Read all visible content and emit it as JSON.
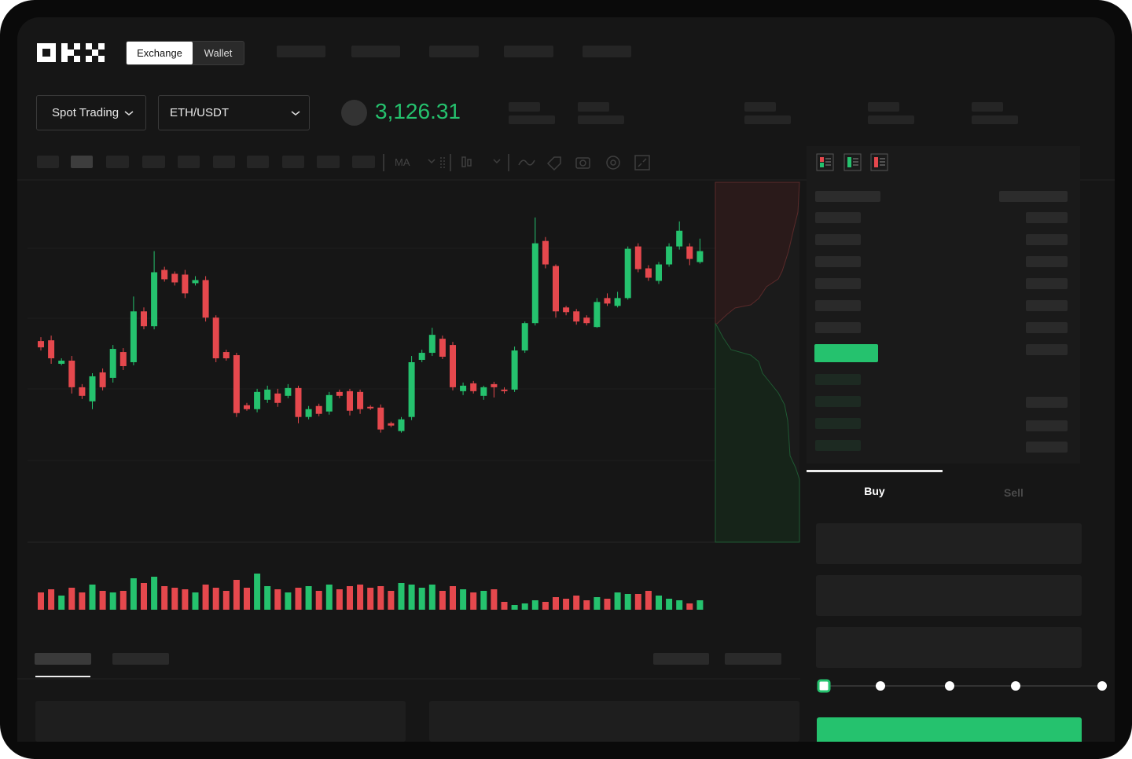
{
  "header": {
    "tabs": [
      "Exchange",
      "Wallet"
    ]
  },
  "toolbar": {
    "mode": "Spot Trading",
    "pair": "ETH/USDT",
    "price": "3,126.31",
    "indicator": "MA"
  },
  "chart": {
    "ylim": [
      10,
      470
    ],
    "candles": [
      [
        267,
        272,
        255,
        259
      ],
      [
        268,
        274,
        238,
        245
      ],
      [
        238,
        245,
        236,
        242
      ],
      [
        242,
        248,
        200,
        208
      ],
      [
        208,
        212,
        193,
        197
      ],
      [
        190,
        226,
        180,
        222
      ],
      [
        227,
        232,
        204,
        208
      ],
      [
        220,
        262,
        214,
        257
      ],
      [
        253,
        258,
        230,
        235
      ],
      [
        240,
        324,
        236,
        305
      ],
      [
        305,
        310,
        282,
        286
      ],
      [
        286,
        382,
        282,
        355
      ],
      [
        358,
        362,
        343,
        346
      ],
      [
        353,
        356,
        338,
        342
      ],
      [
        352,
        358,
        322,
        328
      ],
      [
        341,
        350,
        338,
        345
      ],
      [
        345,
        350,
        292,
        297
      ],
      [
        297,
        300,
        240,
        245
      ],
      [
        253,
        256,
        242,
        245
      ],
      [
        249,
        252,
        170,
        175
      ],
      [
        185,
        188,
        178,
        180
      ],
      [
        180,
        206,
        176,
        202
      ],
      [
        192,
        210,
        188,
        205
      ],
      [
        200,
        206,
        183,
        188
      ],
      [
        197,
        212,
        194,
        207
      ],
      [
        207,
        210,
        162,
        170
      ],
      [
        170,
        184,
        167,
        180
      ],
      [
        184,
        187,
        171,
        174
      ],
      [
        177,
        202,
        173,
        198
      ],
      [
        202,
        205,
        194,
        197
      ],
      [
        203,
        206,
        172,
        178
      ],
      [
        202,
        205,
        174,
        180
      ],
      [
        183,
        185,
        179,
        181
      ],
      [
        182,
        186,
        150,
        154
      ],
      [
        162,
        164,
        157,
        159
      ],
      [
        152,
        170,
        150,
        167
      ],
      [
        170,
        248,
        166,
        240
      ],
      [
        243,
        256,
        240,
        252
      ],
      [
        252,
        284,
        248,
        275
      ],
      [
        270,
        274,
        244,
        247
      ],
      [
        262,
        266,
        204,
        208
      ],
      [
        203,
        214,
        198,
        210
      ],
      [
        213,
        216,
        200,
        203
      ],
      [
        197,
        210,
        192,
        208
      ],
      [
        212,
        215,
        195,
        208
      ],
      [
        205,
        208,
        200,
        203
      ],
      [
        205,
        260,
        202,
        255
      ],
      [
        255,
        292,
        252,
        290
      ],
      [
        290,
        425,
        287,
        392
      ],
      [
        395,
        400,
        360,
        365
      ],
      [
        363,
        365,
        297,
        305
      ],
      [
        310,
        312,
        300,
        304
      ],
      [
        305,
        308,
        288,
        292
      ],
      [
        297,
        300,
        287,
        290
      ],
      [
        285,
        322,
        284,
        317
      ],
      [
        322,
        328,
        312,
        315
      ],
      [
        312,
        330,
        310,
        322
      ],
      [
        322,
        388,
        320,
        385
      ],
      [
        388,
        392,
        355,
        359
      ],
      [
        360,
        364,
        344,
        348
      ],
      [
        344,
        368,
        340,
        365
      ],
      [
        365,
        392,
        362,
        388
      ],
      [
        388,
        420,
        384,
        408
      ],
      [
        388,
        392,
        364,
        372
      ],
      [
        368,
        398,
        366,
        382
      ]
    ],
    "volume_lim": [
      0,
      50
    ],
    "volumes": [
      22,
      26,
      18,
      28,
      22,
      32,
      24,
      22,
      24,
      40,
      34,
      42,
      30,
      28,
      26,
      22,
      32,
      28,
      24,
      38,
      28,
      46,
      30,
      26,
      22,
      28,
      30,
      24,
      32,
      26,
      30,
      32,
      28,
      30,
      24,
      34,
      32,
      28,
      32,
      24,
      30,
      26,
      22,
      24,
      26,
      10,
      6,
      8,
      12,
      10,
      16,
      14,
      18,
      12,
      16,
      14,
      22,
      20,
      20,
      24,
      18,
      14,
      12,
      8,
      12
    ]
  },
  "order_form": {
    "tabs": [
      "Buy",
      "Sell"
    ]
  }
}
